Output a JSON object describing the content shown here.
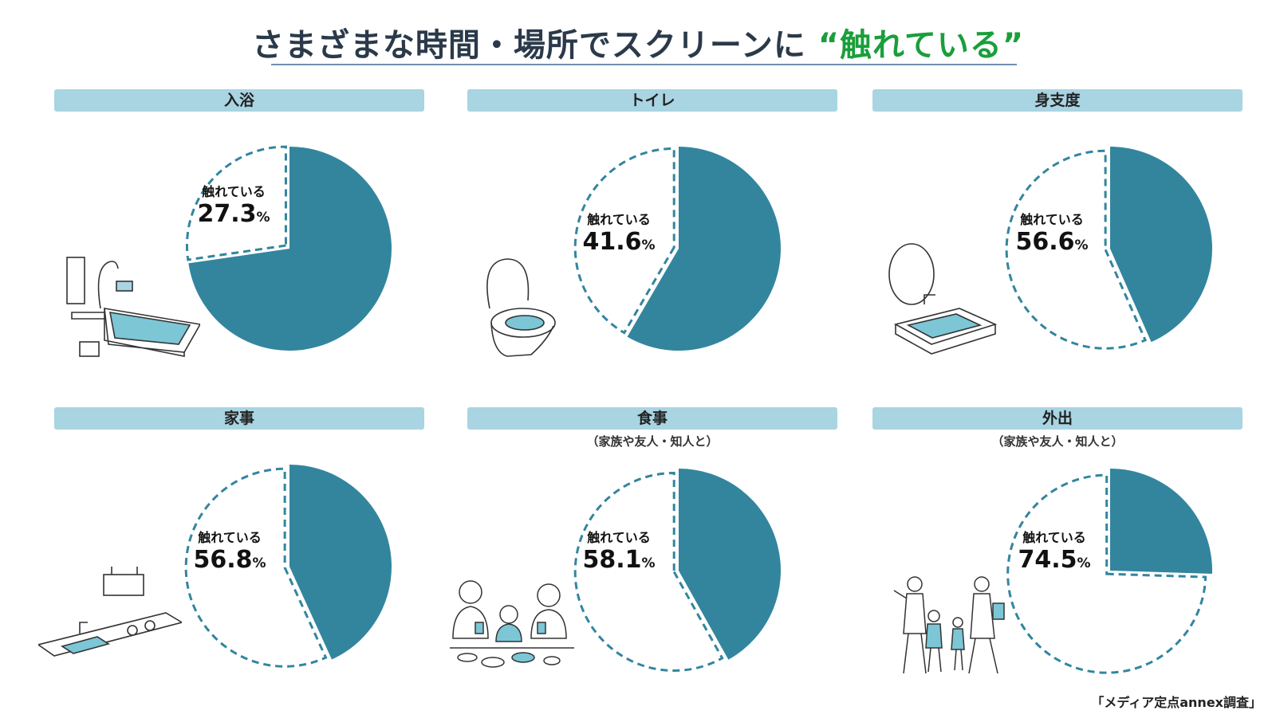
{
  "title": {
    "main": "さまざまな時間・場所でスクリーンに ",
    "highlight": "“触れている”"
  },
  "chart_data": [
    {
      "type": "pie",
      "category": "入浴",
      "subtitle": "",
      "label": "触れている",
      "value": 27.3,
      "unit": "%"
    },
    {
      "type": "pie",
      "category": "トイレ",
      "subtitle": "",
      "label": "触れている",
      "value": 41.6,
      "unit": "%"
    },
    {
      "type": "pie",
      "category": "身支度",
      "subtitle": "",
      "label": "触れている",
      "value": 56.6,
      "unit": "%"
    },
    {
      "type": "pie",
      "category": "家事",
      "subtitle": "",
      "label": "触れている",
      "value": 56.8,
      "unit": "%"
    },
    {
      "type": "pie",
      "category": "食事",
      "subtitle": "（家族や友人・知人と）",
      "label": "触れている",
      "value": 58.1,
      "unit": "%"
    },
    {
      "type": "pie",
      "category": "外出",
      "subtitle": "（家族や友人・知人と）",
      "label": "触れている",
      "value": 74.5,
      "unit": "%"
    }
  ],
  "colors": {
    "filled": "#33859e",
    "dash": "#33859e",
    "bar": "#a9d4e2",
    "highlight": "#1a9e3b"
  },
  "illustrations": [
    "bathtub-illustration",
    "toilet-illustration",
    "washbasin-illustration",
    "kitchen-illustration",
    "family-meal-illustration",
    "family-walk-illustration"
  ],
  "source": "「メディア定点annex調査」"
}
